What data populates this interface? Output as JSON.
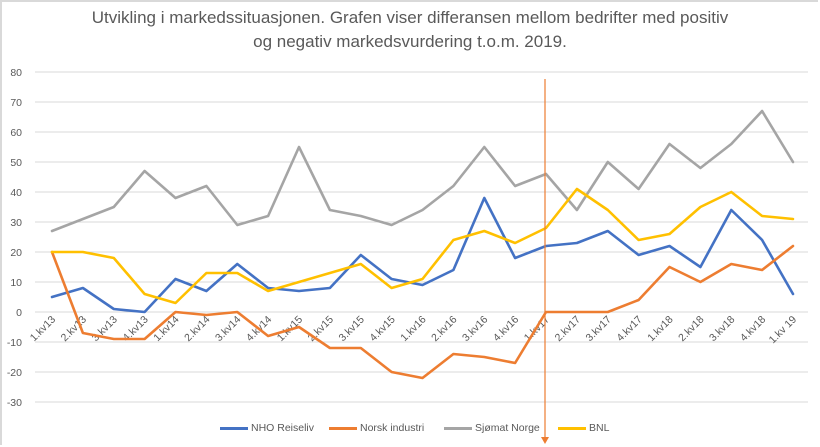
{
  "chart_data": {
    "type": "line",
    "title": "Utvikling i markedssituasjonen. Grafen viser differansen mellom bedrifter med positiv og negativ markedsvurdering t.o.m. 2019.",
    "title_lines": [
      "Utvikling i markedssituasjonen. Grafen viser differansen mellom bedrifter med positiv",
      "og negativ markedsvurdering t.o.m. 2019."
    ],
    "xlabel": "",
    "ylabel": "",
    "ylim": [
      -30,
      80
    ],
    "yticks": [
      80,
      70,
      60,
      50,
      40,
      30,
      20,
      10,
      0,
      -10,
      -20,
      -30
    ],
    "grid": true,
    "legend_position": "bottom",
    "categories": [
      "1.kv13",
      "2.kv13",
      "3.kv13",
      "4.kv13",
      "1.kv14",
      "2.kv14",
      "3.kv14",
      "4.kv14",
      "1.kv15",
      "2.kv15",
      "3.kv15",
      "4.kv15",
      "1.kv16",
      "2.kv16",
      "3.kv16",
      "4.kv16",
      "1.kv17",
      "2.kv17",
      "3.kv17",
      "4.kv17",
      "1.kv18",
      "2.kv18",
      "3.kv18",
      "4.kv18",
      "1.kv 19"
    ],
    "series": [
      {
        "name": "NHO Reiseliv",
        "color": "#4472c4",
        "values": [
          5,
          8,
          1,
          0,
          11,
          7,
          16,
          8,
          7,
          8,
          19,
          11,
          9,
          14,
          38,
          18,
          22,
          23,
          27,
          19,
          22,
          15,
          34,
          24,
          6
        ]
      },
      {
        "name": "Norsk industri",
        "color": "#ed7d31",
        "values": [
          20,
          -7,
          -9,
          -9,
          0,
          -1,
          0,
          -8,
          -5,
          -12,
          -12,
          -20,
          -22,
          -14,
          -15,
          -17,
          0,
          0,
          0,
          4,
          15,
          10,
          16,
          14,
          22
        ]
      },
      {
        "name": "Sjømat Norge",
        "color": "#a5a5a5",
        "values": [
          27,
          31,
          35,
          47,
          38,
          42,
          29,
          32,
          55,
          34,
          32,
          29,
          34,
          42,
          55,
          42,
          46,
          34,
          50,
          41,
          56,
          48,
          56,
          67,
          50
        ]
      },
      {
        "name": "BNL",
        "color": "#ffc000",
        "values": [
          20,
          20,
          18,
          6,
          3,
          13,
          13,
          7,
          10,
          13,
          16,
          8,
          11,
          24,
          27,
          23,
          28,
          41,
          34,
          24,
          26,
          35,
          40,
          32,
          31
        ]
      }
    ],
    "annotations": [
      {
        "type": "vertical-arrow",
        "at_category": "1.kv17",
        "color": "#ed7d31",
        "direction": "down"
      }
    ]
  }
}
